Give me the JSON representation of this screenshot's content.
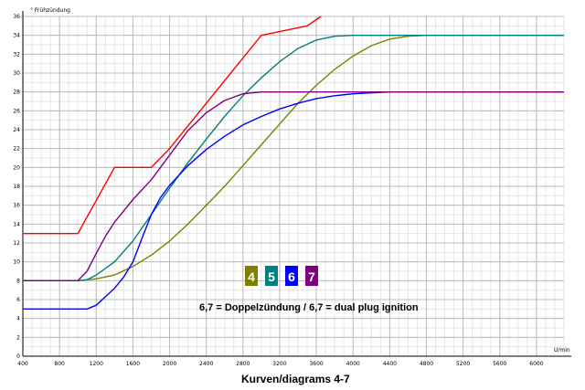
{
  "chart_data": {
    "type": "line",
    "xlabel": "U/min",
    "ylabel": "° Frühzündung",
    "xlim": [
      400,
      6300
    ],
    "ylim": [
      0,
      36
    ],
    "xticks": [
      400,
      800,
      1200,
      1600,
      2000,
      2400,
      2800,
      3200,
      3600,
      4000,
      4400,
      4800,
      5200,
      5600,
      6000
    ],
    "yticks": [
      0,
      2,
      4,
      6,
      8,
      10,
      12,
      14,
      16,
      18,
      20,
      22,
      24,
      26,
      28,
      30,
      32,
      34,
      36
    ],
    "grid": true,
    "series": [
      {
        "name": "4",
        "color": "#808000",
        "x": [
          400,
          1000,
          1200,
          1400,
          1600,
          1800,
          2000,
          2200,
          2400,
          2600,
          2800,
          3000,
          3200,
          3400,
          3600,
          3800,
          4000,
          4200,
          4400,
          4600,
          4800,
          5000,
          5200,
          6300
        ],
        "y": [
          8,
          8,
          8.2,
          8.6,
          9.5,
          10.7,
          12.2,
          14,
          16,
          18,
          20.2,
          22.4,
          24.6,
          26.8,
          28.7,
          30.4,
          31.8,
          32.9,
          33.6,
          33.9,
          34,
          34,
          34,
          34
        ]
      },
      {
        "name": "5",
        "color": "#008080",
        "x": [
          400,
          1000,
          1100,
          1200,
          1400,
          1600,
          1800,
          2000,
          2200,
          2400,
          2600,
          2800,
          3000,
          3200,
          3400,
          3600,
          3800,
          4000,
          4200,
          6300
        ],
        "y": [
          8,
          8,
          8.1,
          8.6,
          10,
          12.2,
          15,
          17.8,
          20.5,
          23,
          25.4,
          27.6,
          29.5,
          31.2,
          32.6,
          33.5,
          33.9,
          34,
          34,
          34
        ]
      },
      {
        "name": "6",
        "color": "#0000ff",
        "x": [
          400,
          1000,
          1100,
          1200,
          1300,
          1400,
          1500,
          1600,
          1700,
          1800,
          1900,
          2000,
          2200,
          2400,
          2600,
          2800,
          3000,
          3200,
          3400,
          3600,
          3800,
          4000,
          4200,
          4400,
          4600,
          6300
        ],
        "y": [
          5,
          5,
          5,
          5.4,
          6.3,
          7.2,
          8.4,
          10,
          12.5,
          15,
          16.8,
          18.1,
          20.2,
          21.9,
          23.3,
          24.5,
          25.4,
          26.2,
          26.8,
          27.3,
          27.6,
          27.8,
          27.9,
          28,
          28,
          28
        ]
      },
      {
        "name": "7",
        "color": "#800080",
        "x": [
          400,
          1000,
          1100,
          1200,
          1300,
          1400,
          1600,
          1800,
          2000,
          2200,
          2400,
          2600,
          2800,
          3000,
          3200,
          6300
        ],
        "y": [
          8,
          8,
          9,
          10.9,
          12.7,
          14.2,
          16.6,
          18.7,
          21.3,
          23.9,
          25.8,
          27.1,
          27.8,
          28,
          28,
          28
        ]
      },
      {
        "color": "#ff0000",
        "x": [
          400,
          1000,
          1400,
          1800,
          2000,
          3000,
          3500,
          3650
        ],
        "y": [
          13,
          13,
          20,
          20,
          22,
          34,
          35,
          36
        ]
      }
    ],
    "badges": [
      {
        "label": "4",
        "color": "#808000"
      },
      {
        "label": "5",
        "color": "#008080"
      },
      {
        "label": "6",
        "color": "#0000ff"
      },
      {
        "label": "7",
        "color": "#800080"
      }
    ],
    "annotation": "6,7 = Doppelzündung / 6,7 = dual plug ignition",
    "caption": "Kurven/diagrams  4-7"
  }
}
